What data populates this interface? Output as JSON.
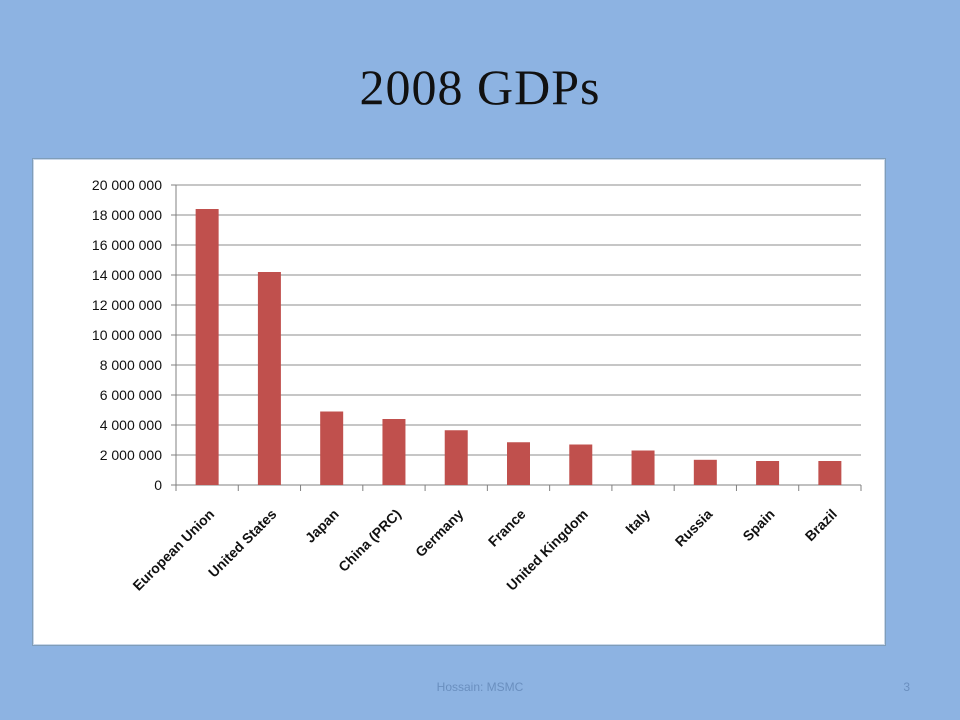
{
  "slide": {
    "title": "2008 GDPs",
    "footer": "Hossain: MSMC",
    "page_number": "3"
  },
  "colors": {
    "background": "#8db3e2",
    "bar": "#c0504d",
    "grid": "#8c8c8c"
  },
  "chart_data": {
    "type": "bar",
    "title": "",
    "xlabel": "",
    "ylabel": "",
    "ylim": [
      0,
      20000000
    ],
    "yticks": [
      0,
      2000000,
      4000000,
      6000000,
      8000000,
      10000000,
      12000000,
      14000000,
      16000000,
      18000000,
      20000000
    ],
    "ytick_labels": [
      "0",
      "2 000 000",
      "4 000 000",
      "6 000 000",
      "8 000 000",
      "10 000 000",
      "12 000 000",
      "14 000 000",
      "16 000 000",
      "18 000 000",
      "20 000 000"
    ],
    "grid": true,
    "legend": "none",
    "categories": [
      "European Union",
      "United States",
      "Japan",
      "China (PRC)",
      "Germany",
      "France",
      "United Kingdom",
      "Italy",
      "Russia",
      "Spain",
      "Brazil"
    ],
    "values": [
      18400000,
      14200000,
      4900000,
      4400000,
      3650000,
      2850000,
      2700000,
      2300000,
      1680000,
      1600000,
      1600000
    ]
  }
}
